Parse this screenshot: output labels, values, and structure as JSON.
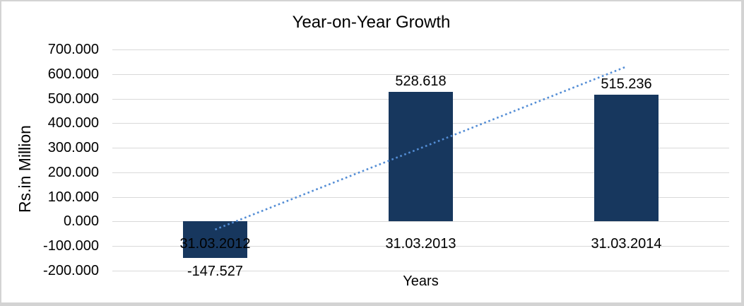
{
  "chart_data": {
    "type": "bar",
    "title": "Year-on-Year Growth",
    "xlabel": "Years",
    "ylabel": "Rs.in Million",
    "categories": [
      "31.03.2012",
      "31.03.2013",
      "31.03.2014"
    ],
    "values": [
      -147.527,
      528.618,
      515.236
    ],
    "value_labels": [
      "-147.527",
      "528.618",
      "515.236"
    ],
    "ylim": [
      -200,
      700
    ],
    "ytick_step": 100,
    "ytick_labels": [
      "700.000",
      "600.000",
      "500.000",
      "400.000",
      "300.000",
      "200.000",
      "100.000",
      "0.000",
      "-100.000",
      "-200.000"
    ],
    "grid": true,
    "legend": "none",
    "trendline": {
      "type": "linear",
      "style": "dotted"
    },
    "colors": {
      "bar": "#17375E",
      "trendline": "#538DD5",
      "gridline": "#D9D9D9",
      "frame_border": "#D3D3D3",
      "text": "#000000"
    }
  }
}
